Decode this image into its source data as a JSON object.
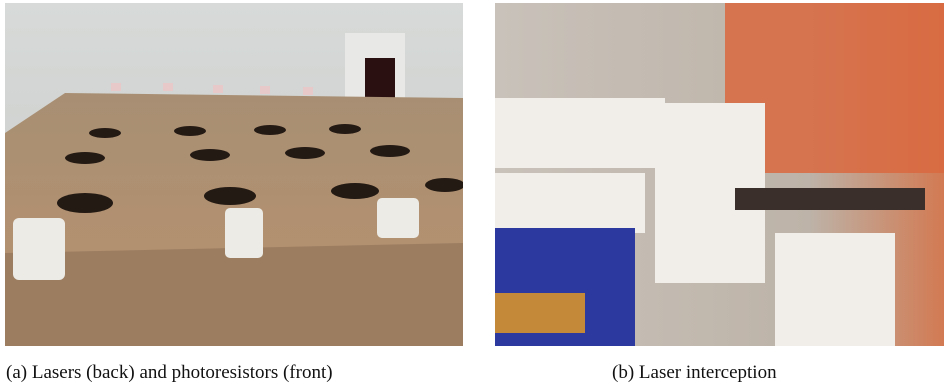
{
  "figures": [
    {
      "caption": "(a) Lasers (back) and photoresistors (front)"
    },
    {
      "caption": "(b) Laser interception"
    }
  ]
}
